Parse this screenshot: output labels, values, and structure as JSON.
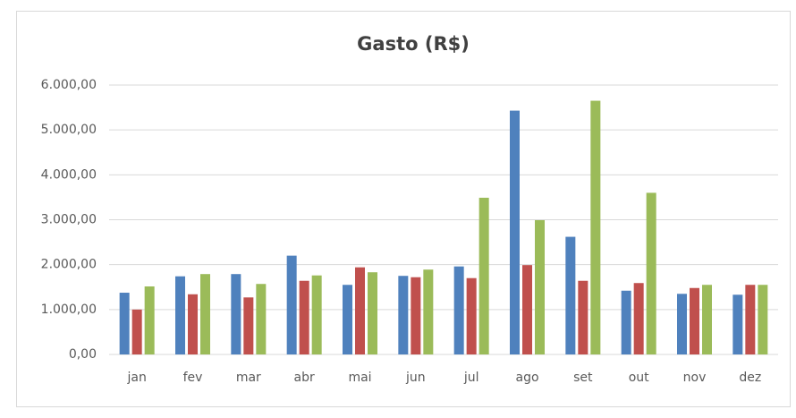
{
  "chart_data": {
    "type": "bar",
    "title": "Gasto (R$)",
    "categories": [
      "jan",
      "fev",
      "mar",
      "abr",
      "mai",
      "jun",
      "jul",
      "ago",
      "set",
      "out",
      "nov",
      "dez"
    ],
    "series": [
      {
        "color": "#4f81bd",
        "values": [
          1375,
          1740,
          1790,
          2200,
          1550,
          1750,
          1960,
          5430,
          2620,
          1420,
          1350,
          1330
        ]
      },
      {
        "color": "#c0504d",
        "values": [
          1000,
          1340,
          1270,
          1640,
          1940,
          1720,
          1700,
          1990,
          1640,
          1590,
          1480,
          1550
        ]
      },
      {
        "color": "#9bbb59",
        "values": [
          1515,
          1790,
          1570,
          1760,
          1830,
          1890,
          3490,
          2990,
          5650,
          3600,
          1550,
          1550
        ]
      }
    ],
    "ylim": [
      0,
      6000
    ],
    "yticks": [
      {
        "value": 0,
        "label": "0,00"
      },
      {
        "value": 1000,
        "label": "1.000,00"
      },
      {
        "value": 2000,
        "label": "2.000,00"
      },
      {
        "value": 3000,
        "label": "3.000,00"
      },
      {
        "value": 4000,
        "label": "4.000,00"
      },
      {
        "value": 5000,
        "label": "5.000,00"
      },
      {
        "value": 6000,
        "label": "6.000,00"
      }
    ],
    "grid": true
  }
}
